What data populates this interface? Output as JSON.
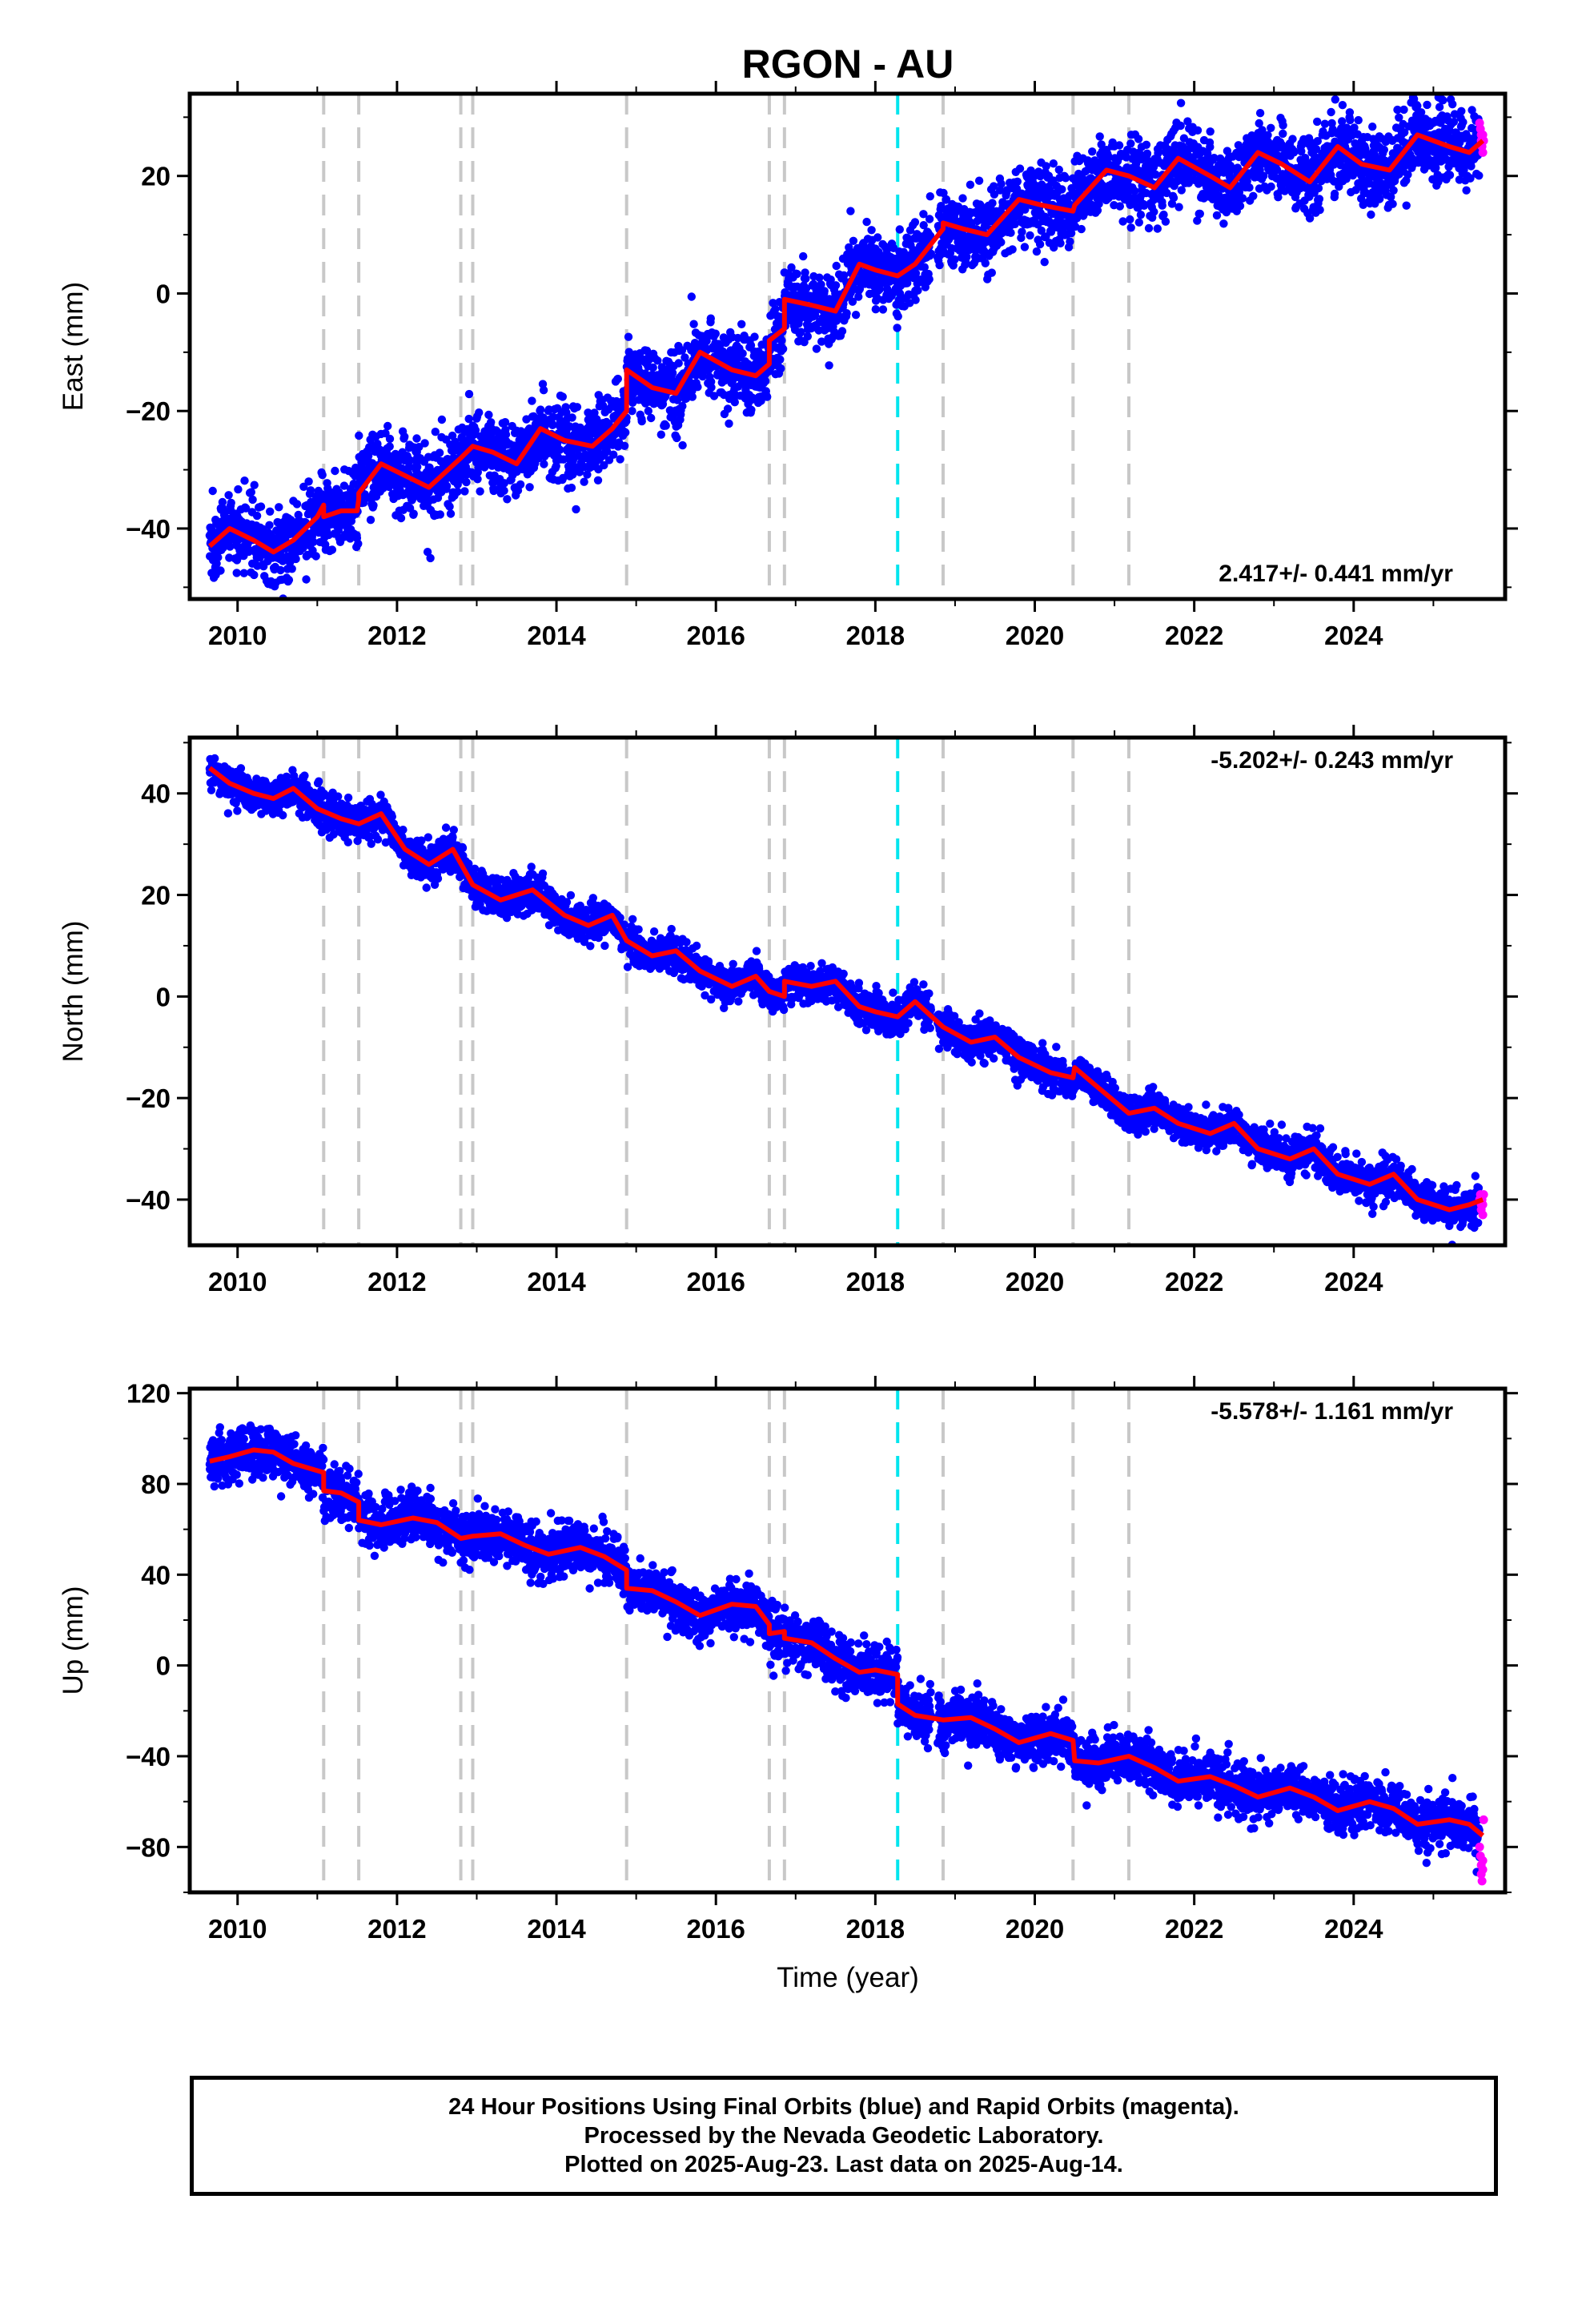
{
  "chart_data": {
    "type": "scatter",
    "title": "RGON - AU",
    "xlabel": "Time (year)",
    "x_ticks": [
      "2010",
      "2012",
      "2014",
      "2016",
      "2018",
      "2020",
      "2022",
      "2024"
    ],
    "xlim": [
      2009.4,
      2025.9
    ],
    "event_lines_gray": [
      2011.08,
      2011.52,
      2012.8,
      2012.95,
      2014.88,
      2016.67,
      2016.86,
      2018.85,
      2020.48,
      2021.18
    ],
    "event_line_cyan": 2018.28,
    "colors": {
      "final": "#0000ff",
      "rapid": "#ff00ff",
      "model": "#ff0000",
      "event": "#c8c8c8",
      "event_special": "#00e5ee"
    },
    "panels": [
      {
        "ylabel": "East (mm)",
        "ylim": [
          -52,
          34
        ],
        "y_ticks": [
          -40,
          -20,
          0,
          20
        ],
        "y_tick_labels": [
          "−40",
          "−20",
          "0",
          "20"
        ],
        "rate_text": "2.417+/- 0.441 mm/yr",
        "rate_position": "bottom-right",
        "noise": 3.2,
        "model": [
          [
            2009.65,
            -43
          ],
          [
            2009.9,
            -40
          ],
          [
            2010.2,
            -42
          ],
          [
            2010.45,
            -44
          ],
          [
            2010.7,
            -42
          ],
          [
            2011.0,
            -38
          ],
          [
            2011.08,
            -36
          ],
          [
            2011.08,
            -38
          ],
          [
            2011.3,
            -37
          ],
          [
            2011.5,
            -37
          ],
          [
            2011.52,
            -35
          ],
          [
            2011.52,
            -34
          ],
          [
            2011.8,
            -29
          ],
          [
            2012.1,
            -31
          ],
          [
            2012.4,
            -33
          ],
          [
            2012.8,
            -28
          ],
          [
            2012.95,
            -26
          ],
          [
            2013.2,
            -27
          ],
          [
            2013.5,
            -29
          ],
          [
            2013.8,
            -23
          ],
          [
            2014.1,
            -25
          ],
          [
            2014.45,
            -26
          ],
          [
            2014.7,
            -23
          ],
          [
            2014.88,
            -20
          ],
          [
            2014.88,
            -13
          ],
          [
            2015.2,
            -16
          ],
          [
            2015.5,
            -17
          ],
          [
            2015.8,
            -10
          ],
          [
            2016.2,
            -13
          ],
          [
            2016.5,
            -14
          ],
          [
            2016.67,
            -12
          ],
          [
            2016.67,
            -8
          ],
          [
            2016.86,
            -6
          ],
          [
            2016.86,
            -1
          ],
          [
            2017.2,
            -2
          ],
          [
            2017.5,
            -3
          ],
          [
            2017.8,
            5
          ],
          [
            2018.0,
            4
          ],
          [
            2018.28,
            3
          ],
          [
            2018.5,
            5
          ],
          [
            2018.85,
            11
          ],
          [
            2018.85,
            12
          ],
          [
            2019.1,
            11
          ],
          [
            2019.4,
            10
          ],
          [
            2019.8,
            16
          ],
          [
            2020.1,
            15
          ],
          [
            2020.48,
            14
          ],
          [
            2020.5,
            15
          ],
          [
            2020.9,
            21
          ],
          [
            2021.18,
            20
          ],
          [
            2021.5,
            18
          ],
          [
            2021.8,
            23
          ],
          [
            2022.2,
            20
          ],
          [
            2022.45,
            18
          ],
          [
            2022.8,
            24
          ],
          [
            2023.1,
            22
          ],
          [
            2023.45,
            19
          ],
          [
            2023.8,
            25
          ],
          [
            2024.1,
            22
          ],
          [
            2024.45,
            21
          ],
          [
            2024.8,
            27
          ],
          [
            2025.2,
            25
          ],
          [
            2025.45,
            24
          ],
          [
            2025.62,
            26
          ]
        ],
        "rapid_points": [
          [
            2025.58,
            29
          ],
          [
            2025.59,
            28
          ],
          [
            2025.6,
            27
          ],
          [
            2025.6,
            26
          ],
          [
            2025.61,
            25
          ],
          [
            2025.62,
            27
          ],
          [
            2025.62,
            24
          ],
          [
            2025.63,
            26
          ]
        ]
      },
      {
        "ylabel": "North (mm)",
        "ylim": [
          -49,
          51
        ],
        "y_ticks": [
          -40,
          -20,
          0,
          20,
          40
        ],
        "y_tick_labels": [
          "−40",
          "−20",
          "0",
          "20",
          "40"
        ],
        "rate_text": "-5.202+/- 0.243 mm/yr",
        "rate_position": "top-right",
        "noise": 1.8,
        "model": [
          [
            2009.65,
            45
          ],
          [
            2009.9,
            42
          ],
          [
            2010.2,
            40
          ],
          [
            2010.45,
            39
          ],
          [
            2010.7,
            41
          ],
          [
            2011.0,
            37
          ],
          [
            2011.3,
            35
          ],
          [
            2011.52,
            34
          ],
          [
            2011.8,
            36
          ],
          [
            2012.1,
            29
          ],
          [
            2012.4,
            26
          ],
          [
            2012.7,
            29
          ],
          [
            2012.95,
            22
          ],
          [
            2013.3,
            19
          ],
          [
            2013.7,
            21
          ],
          [
            2014.1,
            16
          ],
          [
            2014.4,
            14
          ],
          [
            2014.7,
            16
          ],
          [
            2014.88,
            11
          ],
          [
            2015.2,
            8
          ],
          [
            2015.5,
            9
          ],
          [
            2015.8,
            5
          ],
          [
            2016.2,
            2
          ],
          [
            2016.5,
            4
          ],
          [
            2016.67,
            1
          ],
          [
            2016.86,
            0
          ],
          [
            2016.86,
            3
          ],
          [
            2017.2,
            2
          ],
          [
            2017.5,
            3
          ],
          [
            2017.8,
            -2
          ],
          [
            2018.0,
            -3
          ],
          [
            2018.28,
            -4
          ],
          [
            2018.5,
            -1
          ],
          [
            2018.85,
            -6
          ],
          [
            2019.2,
            -9
          ],
          [
            2019.5,
            -8
          ],
          [
            2019.8,
            -12
          ],
          [
            2020.2,
            -15
          ],
          [
            2020.48,
            -16
          ],
          [
            2020.5,
            -14
          ],
          [
            2020.8,
            -18
          ],
          [
            2021.18,
            -23
          ],
          [
            2021.5,
            -22
          ],
          [
            2021.8,
            -25
          ],
          [
            2022.2,
            -27
          ],
          [
            2022.5,
            -25
          ],
          [
            2022.8,
            -30
          ],
          [
            2023.2,
            -32
          ],
          [
            2023.5,
            -30
          ],
          [
            2023.8,
            -35
          ],
          [
            2024.2,
            -37
          ],
          [
            2024.5,
            -35
          ],
          [
            2024.8,
            -40
          ],
          [
            2025.2,
            -42
          ],
          [
            2025.45,
            -41
          ],
          [
            2025.62,
            -40
          ]
        ],
        "rapid_points": [
          [
            2025.58,
            -40
          ],
          [
            2025.59,
            -39
          ],
          [
            2025.6,
            -41
          ],
          [
            2025.6,
            -42
          ],
          [
            2025.61,
            -40
          ],
          [
            2025.62,
            -43
          ],
          [
            2025.62,
            -41
          ],
          [
            2025.63,
            -39
          ]
        ]
      },
      {
        "ylabel": "Up (mm)",
        "ylim": [
          -100,
          122
        ],
        "y_ticks": [
          -80,
          -40,
          0,
          40,
          80,
          120
        ],
        "y_tick_labels": [
          "−80",
          "−40",
          "0",
          "40",
          "80",
          "120"
        ],
        "rate_text": "-5.578+/- 1.161 mm/yr",
        "rate_position": "top-right",
        "noise": 5.5,
        "model": [
          [
            2009.65,
            90
          ],
          [
            2009.9,
            92
          ],
          [
            2010.2,
            95
          ],
          [
            2010.45,
            94
          ],
          [
            2010.7,
            89
          ],
          [
            2011.08,
            85
          ],
          [
            2011.08,
            77
          ],
          [
            2011.3,
            76
          ],
          [
            2011.52,
            72
          ],
          [
            2011.52,
            64
          ],
          [
            2011.8,
            62
          ],
          [
            2012.2,
            65
          ],
          [
            2012.5,
            63
          ],
          [
            2012.8,
            56
          ],
          [
            2012.95,
            57
          ],
          [
            2013.3,
            58
          ],
          [
            2013.6,
            53
          ],
          [
            2013.9,
            49
          ],
          [
            2014.3,
            52
          ],
          [
            2014.6,
            48
          ],
          [
            2014.88,
            42
          ],
          [
            2014.88,
            34
          ],
          [
            2015.2,
            33
          ],
          [
            2015.5,
            28
          ],
          [
            2015.8,
            22
          ],
          [
            2016.2,
            27
          ],
          [
            2016.5,
            26
          ],
          [
            2016.67,
            18
          ],
          [
            2016.67,
            14
          ],
          [
            2016.86,
            15
          ],
          [
            2016.86,
            12
          ],
          [
            2017.2,
            10
          ],
          [
            2017.5,
            3
          ],
          [
            2017.8,
            -3
          ],
          [
            2018.0,
            -2
          ],
          [
            2018.28,
            -4
          ],
          [
            2018.28,
            -17
          ],
          [
            2018.5,
            -22
          ],
          [
            2018.85,
            -24
          ],
          [
            2019.2,
            -23
          ],
          [
            2019.5,
            -28
          ],
          [
            2019.8,
            -34
          ],
          [
            2020.2,
            -30
          ],
          [
            2020.48,
            -33
          ],
          [
            2020.5,
            -42
          ],
          [
            2020.8,
            -43
          ],
          [
            2021.18,
            -40
          ],
          [
            2021.5,
            -45
          ],
          [
            2021.8,
            -51
          ],
          [
            2022.2,
            -49
          ],
          [
            2022.5,
            -53
          ],
          [
            2022.8,
            -58
          ],
          [
            2023.2,
            -54
          ],
          [
            2023.5,
            -58
          ],
          [
            2023.8,
            -64
          ],
          [
            2024.2,
            -60
          ],
          [
            2024.5,
            -63
          ],
          [
            2024.8,
            -70
          ],
          [
            2025.2,
            -68
          ],
          [
            2025.45,
            -70
          ],
          [
            2025.62,
            -75
          ]
        ],
        "rapid_points": [
          [
            2025.58,
            -80
          ],
          [
            2025.59,
            -84
          ],
          [
            2025.6,
            -88
          ],
          [
            2025.6,
            -92
          ],
          [
            2025.61,
            -95
          ],
          [
            2025.62,
            -86
          ],
          [
            2025.62,
            -90
          ],
          [
            2025.63,
            -68
          ]
        ]
      }
    ]
  },
  "footer": {
    "line1": "24 Hour Positions Using Final Orbits (blue) and Rapid Orbits (magenta).",
    "line2": "Processed by the Nevada Geodetic Laboratory.",
    "line3": "Plotted on 2025-Aug-23. Last data on 2025-Aug-14."
  }
}
